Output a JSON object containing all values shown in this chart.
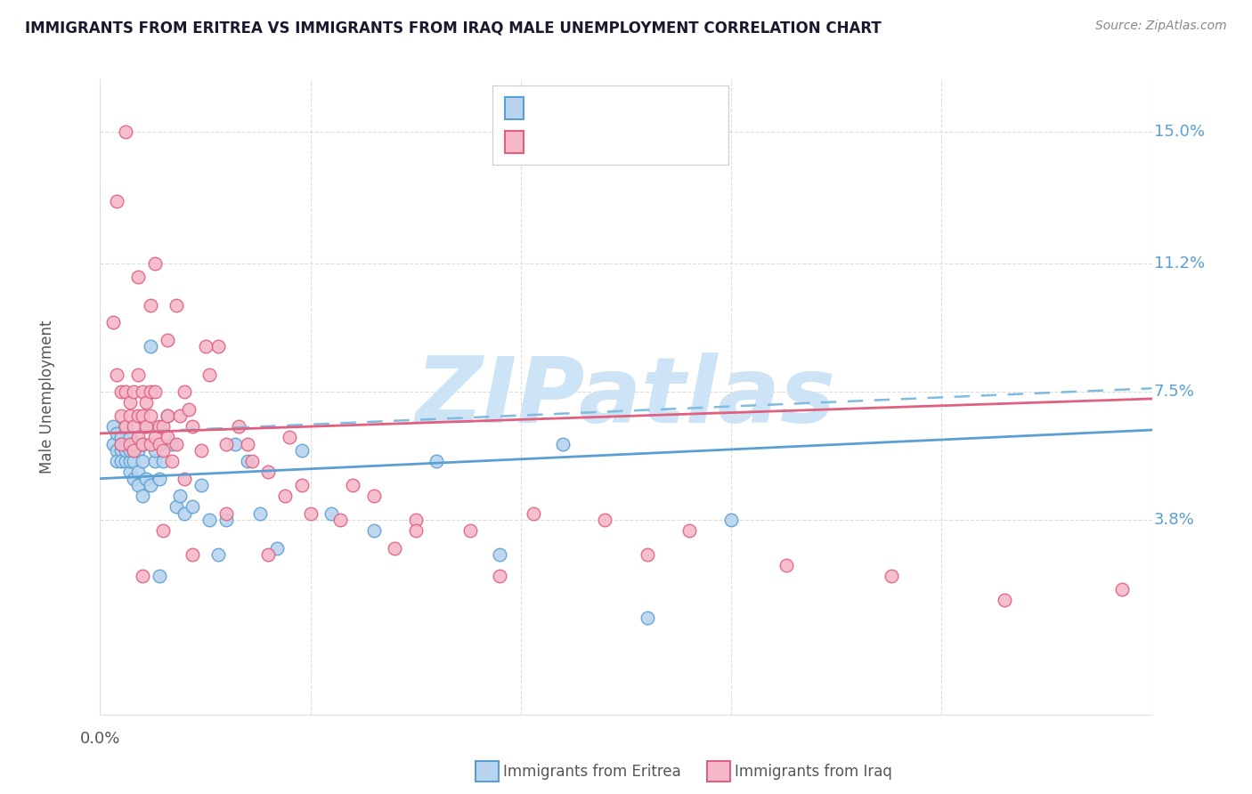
{
  "title": "IMMIGRANTS FROM ERITREA VS IMMIGRANTS FROM IRAQ MALE UNEMPLOYMENT CORRELATION CHART",
  "source": "Source: ZipAtlas.com",
  "ylabel": "Male Unemployment",
  "ytick_vals": [
    0.038,
    0.075,
    0.112,
    0.15
  ],
  "ytick_labels": [
    "3.8%",
    "7.5%",
    "11.2%",
    "15.0%"
  ],
  "xlim": [
    0.0,
    0.25
  ],
  "ylim": [
    -0.018,
    0.165
  ],
  "color_eritrea_fill": "#b8d4ee",
  "color_eritrea_edge": "#5a9fd4",
  "color_iraq_fill": "#f5b8c8",
  "color_iraq_edge": "#e06080",
  "color_line_eritrea": "#5a9fd4",
  "color_line_iraq": "#e06080",
  "color_dashed": "#80bce0",
  "color_grid": "#dddddd",
  "watermark_color": "#cce4f5",
  "legend_label1": "Immigrants from Eritrea",
  "legend_label2": "Immigrants from Iraq",
  "trendline_eritrea_x0": 0.0,
  "trendline_eritrea_y0": 0.05,
  "trendline_eritrea_x1": 0.25,
  "trendline_eritrea_y1": 0.064,
  "trendline_iraq_x0": 0.0,
  "trendline_iraq_y0": 0.063,
  "trendline_iraq_x1": 0.25,
  "trendline_iraq_y1": 0.073,
  "trendline_dashed_x0": 0.0,
  "trendline_dashed_y0": 0.063,
  "trendline_dashed_x1": 0.25,
  "trendline_dashed_y1": 0.076,
  "eritrea_x": [
    0.003,
    0.003,
    0.004,
    0.004,
    0.004,
    0.005,
    0.005,
    0.005,
    0.005,
    0.006,
    0.006,
    0.006,
    0.006,
    0.007,
    0.007,
    0.007,
    0.007,
    0.008,
    0.008,
    0.008,
    0.008,
    0.009,
    0.009,
    0.009,
    0.01,
    0.01,
    0.011,
    0.011,
    0.012,
    0.012,
    0.013,
    0.013,
    0.014,
    0.015,
    0.016,
    0.017,
    0.018,
    0.019,
    0.02,
    0.022,
    0.024,
    0.026,
    0.028,
    0.03,
    0.032,
    0.035,
    0.038,
    0.042,
    0.048,
    0.055,
    0.065,
    0.08,
    0.095,
    0.11,
    0.13,
    0.15,
    0.01,
    0.014
  ],
  "eritrea_y": [
    0.06,
    0.065,
    0.058,
    0.063,
    0.055,
    0.058,
    0.055,
    0.06,
    0.062,
    0.055,
    0.058,
    0.06,
    0.065,
    0.052,
    0.055,
    0.058,
    0.062,
    0.05,
    0.055,
    0.058,
    0.06,
    0.048,
    0.052,
    0.058,
    0.055,
    0.06,
    0.05,
    0.065,
    0.088,
    0.048,
    0.055,
    0.058,
    0.05,
    0.055,
    0.068,
    0.06,
    0.042,
    0.045,
    0.04,
    0.042,
    0.048,
    0.038,
    0.028,
    0.038,
    0.06,
    0.055,
    0.04,
    0.03,
    0.058,
    0.04,
    0.035,
    0.055,
    0.028,
    0.06,
    0.01,
    0.038,
    0.045,
    0.022
  ],
  "iraq_x": [
    0.003,
    0.004,
    0.004,
    0.005,
    0.005,
    0.005,
    0.006,
    0.006,
    0.007,
    0.007,
    0.007,
    0.008,
    0.008,
    0.008,
    0.009,
    0.009,
    0.009,
    0.01,
    0.01,
    0.01,
    0.011,
    0.011,
    0.012,
    0.012,
    0.012,
    0.013,
    0.013,
    0.014,
    0.014,
    0.015,
    0.015,
    0.016,
    0.016,
    0.017,
    0.018,
    0.019,
    0.02,
    0.021,
    0.022,
    0.024,
    0.026,
    0.028,
    0.03,
    0.033,
    0.036,
    0.04,
    0.044,
    0.05,
    0.057,
    0.065,
    0.075,
    0.088,
    0.103,
    0.12,
    0.14,
    0.163,
    0.188,
    0.215,
    0.243,
    0.006,
    0.009,
    0.012,
    0.016,
    0.02,
    0.03,
    0.045,
    0.06,
    0.075,
    0.04,
    0.013,
    0.018,
    0.025,
    0.035,
    0.048,
    0.07,
    0.095,
    0.13,
    0.01,
    0.015,
    0.022
  ],
  "iraq_y": [
    0.095,
    0.13,
    0.08,
    0.068,
    0.075,
    0.06,
    0.065,
    0.075,
    0.06,
    0.072,
    0.068,
    0.058,
    0.065,
    0.075,
    0.068,
    0.062,
    0.08,
    0.06,
    0.068,
    0.075,
    0.072,
    0.065,
    0.06,
    0.068,
    0.075,
    0.062,
    0.075,
    0.06,
    0.065,
    0.058,
    0.065,
    0.062,
    0.068,
    0.055,
    0.06,
    0.068,
    0.075,
    0.07,
    0.065,
    0.058,
    0.08,
    0.088,
    0.06,
    0.065,
    0.055,
    0.052,
    0.045,
    0.04,
    0.038,
    0.045,
    0.038,
    0.035,
    0.04,
    0.038,
    0.035,
    0.025,
    0.022,
    0.015,
    0.018,
    0.15,
    0.108,
    0.1,
    0.09,
    0.05,
    0.04,
    0.062,
    0.048,
    0.035,
    0.028,
    0.112,
    0.1,
    0.088,
    0.06,
    0.048,
    0.03,
    0.022,
    0.028,
    0.022,
    0.035,
    0.028
  ]
}
